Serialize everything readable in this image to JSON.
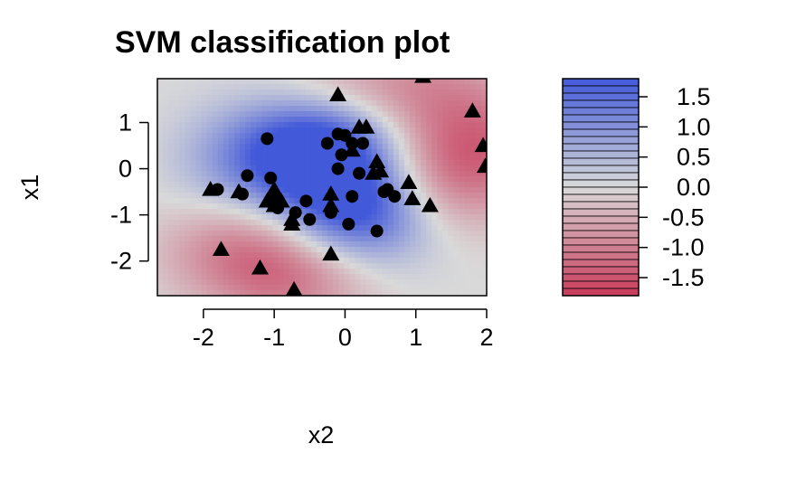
{
  "chart_data": {
    "type": "scatter",
    "title": "SVM classification plot",
    "xlabel": "x2",
    "ylabel": "x1",
    "xlim": [
      -2.65,
      2.0
    ],
    "ylim": [
      -2.75,
      1.95
    ],
    "xticks": [
      -2,
      -1,
      0,
      1,
      2
    ],
    "yticks": [
      -2,
      -1,
      0,
      1
    ],
    "background": "filled contour of SVM decision values",
    "colors": {
      "positive": "#4259d9",
      "neutral": "#d9d9d9",
      "negative": "#c83a5a",
      "points": "#000000"
    },
    "legend": {
      "position": "right",
      "min": -1.8,
      "max": 1.8,
      "ticks": [
        "1.5",
        "1.0",
        "0.5",
        "0.0",
        "-0.5",
        "-1.0",
        "-1.5"
      ],
      "tick_values": [
        1.5,
        1.0,
        0.5,
        0.0,
        -0.5,
        -1.0,
        -1.5
      ]
    },
    "series": [
      {
        "marker": "triangle",
        "points": [
          [
            -0.1,
            1.6
          ],
          [
            0.2,
            0.9
          ],
          [
            0.3,
            0.9
          ],
          [
            1.1,
            2.0
          ],
          [
            1.8,
            1.25
          ],
          [
            1.95,
            0.5
          ],
          [
            1.98,
            0.05
          ],
          [
            0.1,
            0.4
          ],
          [
            0.45,
            0.15
          ],
          [
            0.5,
            -0.05
          ],
          [
            0.4,
            -0.1
          ],
          [
            0.9,
            -0.3
          ],
          [
            0.95,
            -0.65
          ],
          [
            1.2,
            -0.8
          ],
          [
            -1.9,
            -0.45
          ],
          [
            -1.5,
            -0.5
          ],
          [
            -1.1,
            -0.7
          ],
          [
            -1.0,
            -0.8
          ],
          [
            -1.0,
            -0.45
          ],
          [
            -0.9,
            -0.7
          ],
          [
            -0.75,
            -1.1
          ],
          [
            -0.75,
            -1.2
          ],
          [
            -0.2,
            -0.55
          ],
          [
            -0.2,
            -0.8
          ],
          [
            -0.2,
            -1.85
          ],
          [
            -1.75,
            -1.75
          ],
          [
            -1.2,
            -2.15
          ],
          [
            -0.72,
            -2.62
          ]
        ]
      },
      {
        "marker": "circle",
        "points": [
          [
            -1.1,
            0.65
          ],
          [
            -1.38,
            -0.15
          ],
          [
            -1.05,
            -0.2
          ],
          [
            -1.45,
            -0.55
          ],
          [
            -1.8,
            -0.45
          ],
          [
            -1.0,
            -0.6
          ],
          [
            -0.95,
            -0.85
          ],
          [
            -0.7,
            -0.95
          ],
          [
            -0.55,
            -0.7
          ],
          [
            -0.5,
            -1.1
          ],
          [
            -0.25,
            0.55
          ],
          [
            -0.1,
            0.75
          ],
          [
            0.0,
            0.72
          ],
          [
            0.1,
            0.55
          ],
          [
            0.25,
            0.55
          ],
          [
            -0.05,
            0.3
          ],
          [
            -0.1,
            0.0
          ],
          [
            0.2,
            -0.1
          ],
          [
            0.1,
            -0.6
          ],
          [
            0.55,
            -0.5
          ],
          [
            0.6,
            -0.45
          ],
          [
            0.7,
            -0.6
          ],
          [
            -0.2,
            -0.95
          ],
          [
            0.05,
            -1.2
          ],
          [
            0.45,
            -1.35
          ]
        ]
      }
    ]
  }
}
